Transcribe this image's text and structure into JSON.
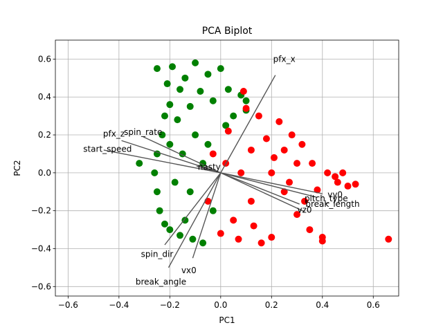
{
  "chart_data": {
    "type": "scatter",
    "title": "PCA Biplot",
    "xlabel": "PC1",
    "ylabel": "PC2",
    "xlim": [
      -0.65,
      0.7
    ],
    "ylim": [
      -0.65,
      0.7
    ],
    "xticks": [
      -0.6,
      -0.4,
      -0.2,
      0.0,
      0.2,
      0.4,
      0.6
    ],
    "yticks": [
      -0.6,
      -0.4,
      -0.2,
      0.0,
      0.2,
      0.4,
      0.6
    ],
    "xtick_labels": [
      "−0.6",
      "−0.4",
      "−0.2",
      "0.0",
      "0.2",
      "0.4",
      "0.6"
    ],
    "ytick_labels": [
      "−0.6",
      "−0.4",
      "−0.2",
      "0.0",
      "0.2",
      "0.4",
      "0.6"
    ],
    "grid": true,
    "colors": {
      "group_a": "#008000",
      "group_b": "#ff0000",
      "arrow": "#555555"
    },
    "series": [
      {
        "color": "#008000",
        "points": [
          [
            -0.32,
            0.05
          ],
          [
            -0.25,
            0.55
          ],
          [
            -0.21,
            0.47
          ],
          [
            -0.2,
            0.36
          ],
          [
            -0.19,
            0.56
          ],
          [
            -0.17,
            0.28
          ],
          [
            -0.16,
            0.44
          ],
          [
            -0.14,
            0.5
          ],
          [
            -0.12,
            0.35
          ],
          [
            -0.1,
            0.58
          ],
          [
            -0.08,
            0.43
          ],
          [
            -0.05,
            0.52
          ],
          [
            -0.03,
            0.38
          ],
          [
            0.0,
            0.55
          ],
          [
            0.03,
            0.44
          ],
          [
            0.05,
            0.3
          ],
          [
            0.08,
            0.41
          ],
          [
            0.1,
            0.33
          ],
          [
            -0.23,
            0.2
          ],
          [
            -0.25,
            0.1
          ],
          [
            -0.26,
            0.0
          ],
          [
            -0.25,
            -0.1
          ],
          [
            -0.24,
            -0.2
          ],
          [
            -0.22,
            -0.27
          ],
          [
            -0.2,
            -0.3
          ],
          [
            -0.16,
            -0.33
          ],
          [
            -0.11,
            -0.35
          ],
          [
            -0.07,
            -0.37
          ],
          [
            -0.2,
            0.15
          ],
          [
            -0.15,
            0.1
          ],
          [
            -0.1,
            0.2
          ],
          [
            -0.05,
            0.15
          ],
          [
            -0.18,
            -0.05
          ],
          [
            -0.12,
            -0.1
          ],
          [
            -0.07,
            0.05
          ],
          [
            -0.03,
            -0.2
          ],
          [
            -0.14,
            -0.25
          ],
          [
            0.02,
            0.25
          ],
          [
            -0.22,
            0.3
          ],
          [
            0.1,
            0.38
          ]
        ]
      },
      {
        "color": "#ff0000",
        "points": [
          [
            0.66,
            -0.35
          ],
          [
            0.53,
            -0.06
          ],
          [
            0.5,
            -0.07
          ],
          [
            0.45,
            -0.02
          ],
          [
            0.42,
            0.0
          ],
          [
            0.4,
            -0.36
          ],
          [
            0.38,
            -0.09
          ],
          [
            0.36,
            0.05
          ],
          [
            0.35,
            -0.3
          ],
          [
            0.32,
            0.15
          ],
          [
            0.3,
            -0.22
          ],
          [
            0.28,
            0.2
          ],
          [
            0.25,
            -0.1
          ],
          [
            0.23,
            0.27
          ],
          [
            0.2,
            -0.34
          ],
          [
            0.18,
            0.18
          ],
          [
            0.15,
            0.3
          ],
          [
            0.13,
            -0.28
          ],
          [
            0.1,
            0.34
          ],
          [
            0.08,
            0.0
          ],
          [
            0.05,
            -0.25
          ],
          [
            0.03,
            0.22
          ],
          [
            0.0,
            -0.32
          ],
          [
            -0.03,
            0.1
          ],
          [
            -0.05,
            -0.15
          ],
          [
            0.09,
            0.43
          ],
          [
            0.12,
            0.12
          ],
          [
            0.21,
            0.08
          ],
          [
            0.27,
            -0.05
          ],
          [
            0.33,
            -0.15
          ],
          [
            0.16,
            -0.37
          ],
          [
            0.25,
            0.12
          ],
          [
            0.02,
            0.05
          ],
          [
            0.4,
            -0.34
          ],
          [
            0.46,
            -0.05
          ],
          [
            0.2,
            0.0
          ],
          [
            0.12,
            -0.15
          ],
          [
            0.3,
            0.05
          ],
          [
            0.07,
            -0.35
          ],
          [
            0.48,
            0.0
          ]
        ]
      }
    ],
    "loadings": [
      {
        "name": "pfx_x",
        "end": [
          0.215,
          0.515
        ],
        "label_at": [
          0.25,
          0.6
        ]
      },
      {
        "name": "pfx_z",
        "end": [
          -0.39,
          0.17
        ],
        "label_at": [
          -0.42,
          0.205
        ]
      },
      {
        "name": "spin_rate",
        "end": [
          -0.305,
          0.19
        ],
        "label_at": [
          -0.305,
          0.215
        ]
      },
      {
        "name": "start_speed",
        "end": [
          -0.46,
          0.12
        ],
        "label_at": [
          -0.445,
          0.125
        ]
      },
      {
        "name": "nasty",
        "end": [
          -0.095,
          0.035
        ],
        "label_at": [
          -0.045,
          0.03
        ]
      },
      {
        "name": "spin_dir",
        "end": [
          -0.22,
          -0.38
        ],
        "label_at": [
          -0.25,
          -0.43
        ]
      },
      {
        "name": "vx0",
        "end": [
          -0.11,
          -0.45
        ],
        "label_at": [
          -0.125,
          -0.515
        ]
      },
      {
        "name": "break_angle",
        "end": [
          -0.205,
          -0.5
        ],
        "label_at": [
          -0.235,
          -0.575
        ]
      },
      {
        "name": "vz0",
        "end": [
          0.33,
          -0.205
        ],
        "label_at": [
          0.33,
          -0.195
        ]
      },
      {
        "name": "break_length",
        "end": [
          0.31,
          -0.165
        ],
        "label_at": [
          0.44,
          -0.165
        ]
      },
      {
        "name": "pitch_type",
        "end": [
          0.38,
          -0.13
        ],
        "label_at": [
          0.415,
          -0.135
        ]
      },
      {
        "name": "vy0",
        "end": [
          0.4,
          -0.11
        ],
        "label_at": [
          0.45,
          -0.115
        ]
      }
    ]
  }
}
